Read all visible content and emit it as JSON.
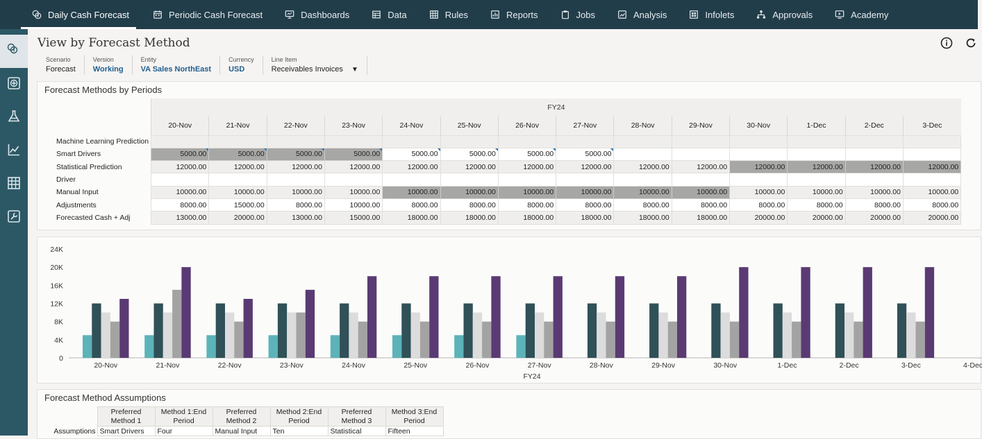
{
  "nav": {
    "items": [
      {
        "label": "Daily Cash Forecast",
        "icon": "forecast-coins-icon",
        "active": true
      },
      {
        "label": "Periodic Cash Forecast",
        "icon": "calendar-icon"
      },
      {
        "label": "Dashboards",
        "icon": "monitor-chart-icon"
      },
      {
        "label": "Data",
        "icon": "table-icon"
      },
      {
        "label": "Rules",
        "icon": "grid-icon"
      },
      {
        "label": "Reports",
        "icon": "report-icon"
      },
      {
        "label": "Jobs",
        "icon": "clipboard-icon"
      },
      {
        "label": "Analysis",
        "icon": "analysis-icon"
      },
      {
        "label": "Infolets",
        "icon": "infolet-icon"
      },
      {
        "label": "Approvals",
        "icon": "hierarchy-icon"
      },
      {
        "label": "Academy",
        "icon": "academy-icon"
      }
    ]
  },
  "rail": [
    "forecast-coins-icon",
    "add-square-icon",
    "flask-icon",
    "line-chart-icon",
    "table-grid-icon",
    "wrench-icon"
  ],
  "page": {
    "title": "View by Forecast Method"
  },
  "pov": {
    "scenario": {
      "label": "Scenario",
      "value": "Forecast"
    },
    "version": {
      "label": "Version",
      "value": "Working"
    },
    "entity": {
      "label": "Entity",
      "value": "VA Sales NorthEast"
    },
    "currency": {
      "label": "Currency",
      "value": "USD"
    },
    "line_item": {
      "label": "Line Item",
      "value": "Receivables Invoices"
    }
  },
  "grid": {
    "title": "Forecast Methods by Periods",
    "fy": "FY24",
    "columns": [
      "20-Nov",
      "21-Nov",
      "22-Nov",
      "23-Nov",
      "24-Nov",
      "25-Nov",
      "26-Nov",
      "27-Nov",
      "28-Nov",
      "29-Nov",
      "30-Nov",
      "1-Dec",
      "2-Dec",
      "3-Dec"
    ],
    "rows": [
      {
        "label": "Machine Learning Prediction",
        "values": [
          "",
          "",
          "",
          "",
          "",
          "",
          "",
          "",
          "",
          "",
          "",
          "",
          "",
          ""
        ],
        "shaded": []
      },
      {
        "label": "Smart Drivers",
        "values": [
          "5000.00",
          "5000.00",
          "5000.00",
          "5000.00",
          "5000.00",
          "5000.00",
          "5000.00",
          "5000.00",
          "",
          "",
          "",
          "",
          "",
          ""
        ],
        "shaded": [
          0,
          1,
          2,
          3
        ],
        "marked": [
          0,
          1,
          2,
          3,
          4,
          5,
          6,
          7
        ]
      },
      {
        "label": "Statistical Prediction",
        "values": [
          "12000.00",
          "12000.00",
          "12000.00",
          "12000.00",
          "12000.00",
          "12000.00",
          "12000.00",
          "12000.00",
          "12000.00",
          "12000.00",
          "12000.00",
          "12000.00",
          "12000.00",
          "12000.00"
        ],
        "shaded": [
          10,
          11,
          12,
          13
        ]
      },
      {
        "label": "Driver",
        "values": [
          "",
          "",
          "",
          "",
          "",
          "",
          "",
          "",
          "",
          "",
          "",
          "",
          "",
          ""
        ],
        "shaded": []
      },
      {
        "label": "Manual Input",
        "values": [
          "10000.00",
          "10000.00",
          "10000.00",
          "10000.00",
          "10000.00",
          "10000.00",
          "10000.00",
          "10000.00",
          "10000.00",
          "10000.00",
          "10000.00",
          "10000.00",
          "10000.00",
          "10000.00"
        ],
        "shaded": [
          4,
          5,
          6,
          7,
          8,
          9
        ]
      },
      {
        "label": "Adjustments",
        "values": [
          "8000.00",
          "15000.00",
          "8000.00",
          "10000.00",
          "8000.00",
          "8000.00",
          "8000.00",
          "8000.00",
          "8000.00",
          "8000.00",
          "8000.00",
          "8000.00",
          "8000.00",
          "8000.00"
        ],
        "shaded": []
      },
      {
        "label": "Forecasted Cash + Adj",
        "values": [
          "13000.00",
          "20000.00",
          "13000.00",
          "15000.00",
          "18000.00",
          "18000.00",
          "18000.00",
          "18000.00",
          "18000.00",
          "18000.00",
          "20000.00",
          "20000.00",
          "20000.00",
          "20000.00"
        ],
        "shaded": []
      }
    ]
  },
  "chart_data": {
    "type": "bar",
    "categories": [
      "20-Nov",
      "21-Nov",
      "22-Nov",
      "23-Nov",
      "24-Nov",
      "25-Nov",
      "26-Nov",
      "27-Nov",
      "28-Nov",
      "29-Nov",
      "30-Nov",
      "1-Dec",
      "2-Dec",
      "3-Dec",
      "4-Dec"
    ],
    "xlabel": "FY24",
    "ylim": [
      0,
      24000
    ],
    "yticks": [
      "0",
      "4K",
      "8K",
      "12K",
      "16K",
      "20K",
      "24K"
    ],
    "series": [
      {
        "color": "#5cb3b8",
        "values": [
          5000,
          5000,
          5000,
          5000,
          5000,
          5000,
          5000,
          5000,
          null,
          null,
          null,
          null,
          null,
          null,
          null
        ]
      },
      {
        "color": "#2f5157",
        "values": [
          12000,
          12000,
          12000,
          12000,
          12000,
          12000,
          12000,
          12000,
          12000,
          12000,
          12000,
          12000,
          12000,
          12000,
          null
        ]
      },
      {
        "color": "#dcdcdc",
        "values": [
          10000,
          10000,
          10000,
          10000,
          10000,
          10000,
          10000,
          10000,
          10000,
          10000,
          10000,
          10000,
          10000,
          10000,
          null
        ]
      },
      {
        "color": "#a4a3a3",
        "values": [
          8000,
          15000,
          8000,
          10000,
          8000,
          8000,
          8000,
          8000,
          8000,
          8000,
          8000,
          8000,
          8000,
          8000,
          null
        ]
      },
      {
        "color": "#5a3a73",
        "values": [
          13000,
          20000,
          13000,
          15000,
          18000,
          18000,
          18000,
          18000,
          18000,
          18000,
          20000,
          20000,
          20000,
          20000,
          null
        ]
      }
    ]
  },
  "assumptions": {
    "title": "Forecast Method Assumptions",
    "row_label": "Assumptions",
    "headers": [
      "Preferred Method 1",
      "Method 1:End Period",
      "Preferred Method 2",
      "Method 2:End Period",
      "Preferred Method 3",
      "Method 3:End Period"
    ],
    "values": [
      "Smart Drivers",
      "Four",
      "Manual Input",
      "Ten",
      "Statistical",
      "Fifteen"
    ]
  }
}
